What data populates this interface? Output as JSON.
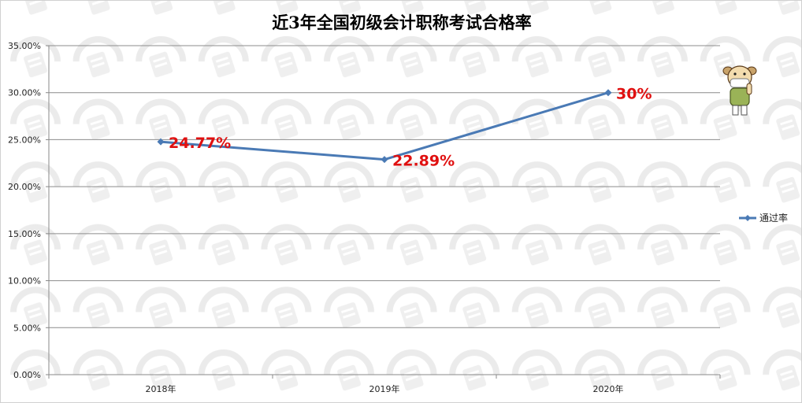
{
  "chart_data": {
    "type": "line",
    "title": "近3年全国初级会计职称考试合格率",
    "categories": [
      "2018年",
      "2019年",
      "2020年"
    ],
    "series": [
      {
        "name": "通过率",
        "values": [
          24.77,
          22.89,
          30
        ],
        "labels": [
          "24.77%",
          "22.89%",
          "30%"
        ]
      }
    ],
    "yticks": [
      "0.00%",
      "5.00%",
      "10.00%",
      "15.00%",
      "20.00%",
      "25.00%",
      "30.00%",
      "35.00%"
    ],
    "ylim": [
      0,
      35
    ],
    "grid": true,
    "legend": "right",
    "colors": {
      "line": "#4a7ab5",
      "label": "#e01010",
      "grid": "#8c8c8c",
      "watermark": "#ebebeb"
    }
  }
}
